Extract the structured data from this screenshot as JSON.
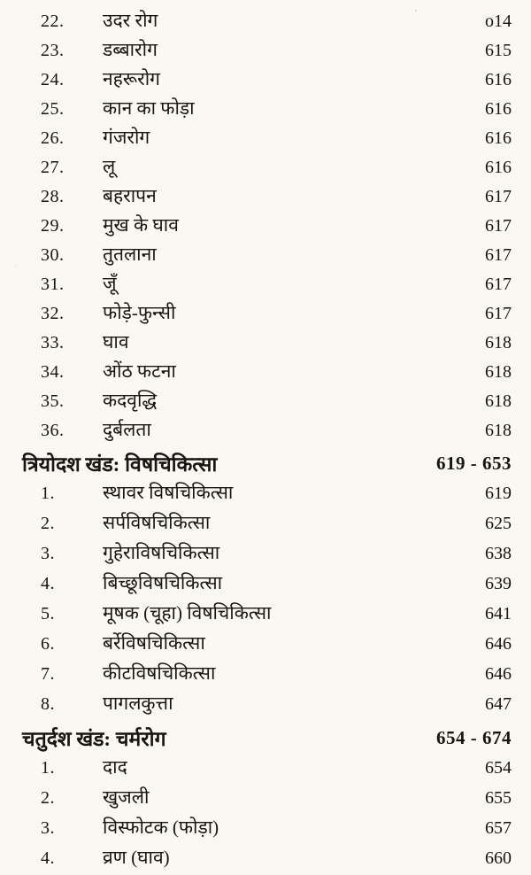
{
  "page": {
    "background_color": "#f9f8f3",
    "text_color": "#181512",
    "kind": "book-table-of-contents-scan",
    "language": "Hindi"
  },
  "toc": {
    "sections": [
      {
        "heading": null,
        "entries": [
          {
            "num": "22.",
            "title": "उदर रोग",
            "page": "o14"
          },
          {
            "num": "23.",
            "title": "डब्बारोग",
            "page": "615"
          },
          {
            "num": "24.",
            "title": "नहरूरोग",
            "page": "616"
          },
          {
            "num": "25.",
            "title": "कान का फोड़ा",
            "page": "616"
          },
          {
            "num": "26.",
            "title": "गंजरोग",
            "page": "616"
          },
          {
            "num": "27.",
            "title": "लू",
            "page": "616"
          },
          {
            "num": "28.",
            "title": "बहरापन",
            "page": "617"
          },
          {
            "num": "29.",
            "title": "मुख के घाव",
            "page": "617"
          },
          {
            "num": "30.",
            "title": "तुतलाना",
            "page": "617"
          },
          {
            "num": "31.",
            "title": "जूँ",
            "page": "617"
          },
          {
            "num": "32.",
            "title": "फोड़े-फुन्सी",
            "page": "617"
          },
          {
            "num": "33.",
            "title": "घाव",
            "page": "618"
          },
          {
            "num": "34.",
            "title": "ओंठ फटना",
            "page": "618"
          },
          {
            "num": "35.",
            "title": "कदवृद्धि",
            "page": "618"
          },
          {
            "num": "36.",
            "title": "दुर्बलता",
            "page": "618"
          }
        ]
      },
      {
        "heading": {
          "label": "त्रियोदश खंड: विषचिकित्सा",
          "pages": "619 - 653"
        },
        "entries": [
          {
            "num": "1.",
            "title": "स्थावर विषचिकित्सा",
            "page": "619"
          },
          {
            "num": "2.",
            "title": "सर्पविषचिकित्सा",
            "page": "625"
          },
          {
            "num": "3.",
            "title": "गुहेराविषचिकित्सा",
            "page": "638"
          },
          {
            "num": "4.",
            "title": "बिच्छूविषचिकित्सा",
            "page": "639"
          },
          {
            "num": "5.",
            "title": "मूषक (चूहा) विषचिकित्सा",
            "page": "641"
          },
          {
            "num": "6.",
            "title": "बर्रेविषचिकित्सा",
            "page": "646"
          },
          {
            "num": "7.",
            "title": "कीटविषचिकित्सा",
            "page": "646"
          },
          {
            "num": "8.",
            "title": "पागलकुत्ता",
            "page": "647"
          }
        ]
      },
      {
        "heading": {
          "label": "चतुर्दश खंड: चर्मरोग",
          "pages": "654 - 674"
        },
        "entries": [
          {
            "num": "1.",
            "title": "दाद",
            "page": "654"
          },
          {
            "num": "2.",
            "title": "खुजली",
            "page": "655"
          },
          {
            "num": "3.",
            "title": "विस्फोटक (फोड़ा)",
            "page": "657"
          },
          {
            "num": "4.",
            "title": "व्रण (घाव)",
            "page": "660"
          }
        ]
      }
    ]
  }
}
